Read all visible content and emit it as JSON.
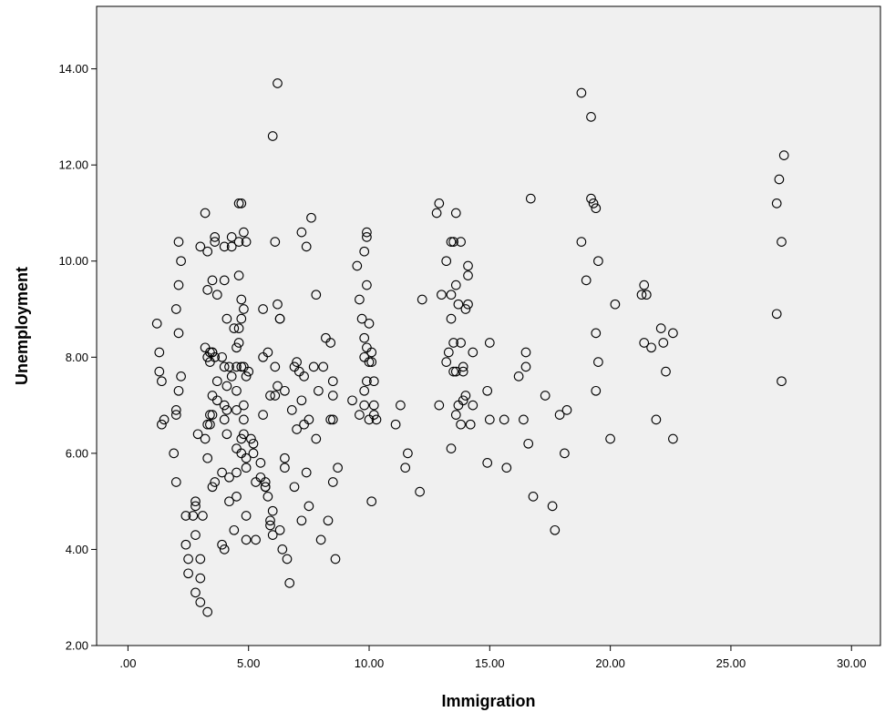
{
  "chart_data": {
    "type": "scatter",
    "title": "",
    "xlabel": "Immigration",
    "ylabel": "Unemployment",
    "xlim": [
      -1.3,
      31.2
    ],
    "ylim": [
      2.0,
      15.3
    ],
    "x_ticks": [
      ".00",
      "5.00",
      "10.00",
      "15.00",
      "20.00",
      "25.00",
      "30.00"
    ],
    "y_ticks": [
      "2.00",
      "4.00",
      "6.00",
      "8.00",
      "10.00",
      "12.00",
      "14.00"
    ],
    "grid": false,
    "marker": "open-circle",
    "colors": {
      "plot_background": "#f0f0f0",
      "marker_stroke": "#000000",
      "axis": "#000000"
    },
    "points": [
      [
        1.2,
        8.7
      ],
      [
        1.3,
        8.1
      ],
      [
        1.3,
        7.7
      ],
      [
        1.4,
        7.5
      ],
      [
        1.4,
        6.6
      ],
      [
        1.5,
        6.7
      ],
      [
        1.9,
        6.0
      ],
      [
        2.0,
        5.4
      ],
      [
        2.0,
        6.8
      ],
      [
        2.0,
        6.9
      ],
      [
        2.0,
        9.0
      ],
      [
        2.1,
        9.5
      ],
      [
        2.1,
        8.5
      ],
      [
        2.1,
        10.4
      ],
      [
        2.2,
        10.0
      ],
      [
        2.2,
        7.6
      ],
      [
        2.1,
        7.3
      ],
      [
        2.4,
        4.7
      ],
      [
        2.4,
        4.1
      ],
      [
        2.5,
        3.8
      ],
      [
        2.5,
        3.5
      ],
      [
        2.7,
        4.7
      ],
      [
        2.8,
        4.9
      ],
      [
        2.8,
        5.0
      ],
      [
        2.8,
        4.3
      ],
      [
        2.8,
        3.1
      ],
      [
        3.0,
        3.8
      ],
      [
        3.0,
        3.4
      ],
      [
        3.0,
        2.9
      ],
      [
        3.0,
        10.3
      ],
      [
        2.9,
        6.4
      ],
      [
        3.1,
        4.7
      ],
      [
        3.2,
        6.3
      ],
      [
        3.2,
        11.0
      ],
      [
        3.3,
        10.2
      ],
      [
        3.3,
        9.4
      ],
      [
        3.2,
        8.2
      ],
      [
        3.3,
        8.0
      ],
      [
        3.4,
        7.9
      ],
      [
        3.4,
        8.1
      ],
      [
        3.5,
        8.1
      ],
      [
        3.5,
        8.1
      ],
      [
        3.6,
        8.0
      ],
      [
        3.4,
        6.8
      ],
      [
        3.4,
        6.6
      ],
      [
        3.3,
        6.6
      ],
      [
        3.5,
        6.8
      ],
      [
        3.3,
        5.9
      ],
      [
        3.3,
        2.7
      ],
      [
        3.5,
        7.2
      ],
      [
        3.5,
        9.6
      ],
      [
        3.6,
        10.4
      ],
      [
        3.6,
        10.5
      ],
      [
        3.7,
        9.3
      ],
      [
        3.7,
        7.5
      ],
      [
        3.7,
        7.1
      ],
      [
        3.5,
        5.3
      ],
      [
        3.6,
        5.4
      ],
      [
        3.9,
        5.6
      ],
      [
        3.9,
        4.1
      ],
      [
        4.0,
        4.0
      ],
      [
        3.9,
        8.0
      ],
      [
        4.0,
        7.8
      ],
      [
        4.0,
        7.0
      ],
      [
        4.0,
        6.7
      ],
      [
        4.1,
        6.9
      ],
      [
        4.1,
        6.4
      ],
      [
        4.0,
        9.6
      ],
      [
        4.0,
        10.3
      ],
      [
        4.1,
        8.8
      ],
      [
        4.1,
        7.4
      ],
      [
        4.2,
        7.8
      ],
      [
        4.3,
        7.6
      ],
      [
        4.2,
        5.5
      ],
      [
        4.2,
        5.0
      ],
      [
        4.3,
        10.3
      ],
      [
        4.3,
        10.5
      ],
      [
        4.4,
        8.6
      ],
      [
        4.4,
        4.4
      ],
      [
        4.5,
        5.6
      ],
      [
        4.5,
        5.1
      ],
      [
        4.5,
        6.9
      ],
      [
        4.5,
        6.1
      ],
      [
        4.5,
        7.3
      ],
      [
        4.5,
        7.8
      ],
      [
        4.5,
        8.2
      ],
      [
        4.6,
        11.2
      ],
      [
        4.6,
        10.4
      ],
      [
        4.6,
        9.7
      ],
      [
        4.6,
        8.6
      ],
      [
        4.6,
        8.3
      ],
      [
        4.7,
        11.2
      ],
      [
        4.7,
        9.2
      ],
      [
        4.7,
        8.8
      ],
      [
        4.7,
        7.8
      ],
      [
        4.7,
        6.0
      ],
      [
        4.7,
        6.3
      ],
      [
        4.8,
        10.6
      ],
      [
        4.8,
        9.0
      ],
      [
        4.8,
        7.8
      ],
      [
        4.8,
        7.0
      ],
      [
        4.8,
        6.7
      ],
      [
        4.8,
        6.4
      ],
      [
        4.9,
        7.6
      ],
      [
        4.9,
        5.9
      ],
      [
        4.9,
        4.7
      ],
      [
        4.9,
        5.7
      ],
      [
        4.9,
        4.2
      ],
      [
        4.9,
        10.4
      ],
      [
        5.0,
        7.7
      ],
      [
        5.1,
        6.3
      ],
      [
        5.2,
        6.0
      ],
      [
        5.2,
        6.2
      ],
      [
        5.3,
        4.2
      ],
      [
        5.3,
        5.4
      ],
      [
        5.5,
        5.5
      ],
      [
        5.5,
        5.8
      ],
      [
        5.6,
        9.0
      ],
      [
        5.6,
        8.0
      ],
      [
        5.6,
        6.8
      ],
      [
        5.7,
        5.4
      ],
      [
        5.7,
        5.3
      ],
      [
        5.7,
        5.3
      ],
      [
        5.8,
        5.1
      ],
      [
        5.8,
        8.1
      ],
      [
        5.9,
        7.2
      ],
      [
        5.9,
        4.6
      ],
      [
        5.9,
        4.5
      ],
      [
        6.0,
        12.6
      ],
      [
        6.0,
        4.8
      ],
      [
        6.0,
        4.3
      ],
      [
        6.1,
        7.8
      ],
      [
        6.1,
        7.2
      ],
      [
        6.2,
        9.1
      ],
      [
        6.1,
        10.4
      ],
      [
        6.2,
        13.7
      ],
      [
        6.2,
        7.4
      ],
      [
        6.3,
        8.8
      ],
      [
        6.3,
        8.8
      ],
      [
        6.3,
        4.4
      ],
      [
        6.4,
        4.0
      ],
      [
        6.5,
        5.7
      ],
      [
        6.5,
        5.9
      ],
      [
        6.5,
        7.3
      ],
      [
        6.6,
        3.8
      ],
      [
        6.7,
        3.3
      ],
      [
        6.8,
        6.9
      ],
      [
        6.9,
        7.8
      ],
      [
        6.9,
        5.3
      ],
      [
        7.0,
        7.9
      ],
      [
        7.0,
        6.5
      ],
      [
        7.1,
        7.7
      ],
      [
        7.2,
        10.6
      ],
      [
        7.2,
        7.1
      ],
      [
        7.2,
        4.6
      ],
      [
        7.3,
        7.6
      ],
      [
        7.3,
        6.6
      ],
      [
        7.4,
        10.3
      ],
      [
        7.4,
        5.6
      ],
      [
        7.5,
        4.9
      ],
      [
        7.5,
        6.7
      ],
      [
        7.6,
        10.9
      ],
      [
        7.7,
        7.8
      ],
      [
        7.8,
        9.3
      ],
      [
        7.8,
        6.3
      ],
      [
        7.9,
        7.3
      ],
      [
        8.0,
        4.2
      ],
      [
        8.1,
        7.8
      ],
      [
        8.2,
        8.4
      ],
      [
        8.3,
        4.6
      ],
      [
        8.4,
        8.3
      ],
      [
        8.4,
        6.7
      ],
      [
        8.5,
        6.7
      ],
      [
        8.5,
        7.2
      ],
      [
        8.5,
        7.5
      ],
      [
        8.5,
        5.4
      ],
      [
        8.6,
        3.8
      ],
      [
        8.7,
        5.7
      ],
      [
        9.3,
        7.1
      ],
      [
        9.5,
        9.9
      ],
      [
        9.6,
        9.2
      ],
      [
        9.6,
        6.8
      ],
      [
        9.7,
        8.8
      ],
      [
        9.8,
        10.2
      ],
      [
        9.8,
        8.4
      ],
      [
        9.8,
        8.0
      ],
      [
        9.8,
        7.3
      ],
      [
        9.8,
        7.0
      ],
      [
        9.9,
        10.5
      ],
      [
        9.9,
        10.6
      ],
      [
        9.9,
        9.5
      ],
      [
        9.9,
        8.2
      ],
      [
        9.9,
        7.5
      ],
      [
        10.0,
        8.7
      ],
      [
        10.0,
        7.9
      ],
      [
        10.0,
        6.7
      ],
      [
        10.1,
        8.1
      ],
      [
        10.1,
        7.9
      ],
      [
        10.2,
        6.8
      ],
      [
        10.1,
        5.0
      ],
      [
        10.2,
        7.5
      ],
      [
        10.2,
        7.0
      ],
      [
        10.3,
        6.7
      ],
      [
        11.1,
        6.6
      ],
      [
        11.3,
        7.0
      ],
      [
        11.5,
        5.7
      ],
      [
        11.6,
        6.0
      ],
      [
        12.1,
        5.2
      ],
      [
        12.2,
        9.2
      ],
      [
        12.8,
        11.0
      ],
      [
        12.9,
        11.2
      ],
      [
        12.9,
        7.0
      ],
      [
        13.0,
        9.3
      ],
      [
        13.2,
        10.0
      ],
      [
        13.2,
        7.9
      ],
      [
        13.3,
        8.1
      ],
      [
        13.4,
        6.1
      ],
      [
        13.4,
        9.3
      ],
      [
        13.4,
        8.8
      ],
      [
        13.4,
        10.4
      ],
      [
        13.5,
        10.4
      ],
      [
        13.5,
        8.3
      ],
      [
        13.5,
        7.7
      ],
      [
        13.6,
        11.0
      ],
      [
        13.6,
        9.5
      ],
      [
        13.6,
        7.7
      ],
      [
        13.6,
        6.8
      ],
      [
        13.7,
        9.1
      ],
      [
        13.7,
        7.0
      ],
      [
        13.8,
        10.4
      ],
      [
        13.8,
        8.3
      ],
      [
        13.8,
        6.6
      ],
      [
        13.9,
        7.7
      ],
      [
        13.9,
        7.8
      ],
      [
        13.9,
        7.1
      ],
      [
        14.0,
        9.0
      ],
      [
        14.0,
        7.2
      ],
      [
        14.1,
        9.7
      ],
      [
        14.1,
        9.9
      ],
      [
        14.1,
        9.1
      ],
      [
        14.2,
        6.6
      ],
      [
        14.3,
        8.1
      ],
      [
        14.3,
        7.0
      ],
      [
        14.9,
        7.3
      ],
      [
        14.9,
        5.8
      ],
      [
        15.0,
        8.3
      ],
      [
        15.0,
        6.7
      ],
      [
        15.6,
        6.7
      ],
      [
        15.7,
        5.7
      ],
      [
        16.2,
        7.6
      ],
      [
        16.4,
        6.7
      ],
      [
        16.5,
        7.8
      ],
      [
        16.5,
        8.1
      ],
      [
        16.6,
        6.2
      ],
      [
        16.7,
        11.3
      ],
      [
        16.8,
        5.1
      ],
      [
        17.3,
        7.2
      ],
      [
        17.6,
        4.9
      ],
      [
        17.7,
        4.4
      ],
      [
        17.9,
        6.8
      ],
      [
        18.1,
        6.0
      ],
      [
        18.2,
        6.9
      ],
      [
        18.8,
        10.4
      ],
      [
        18.8,
        13.5
      ],
      [
        19.0,
        9.6
      ],
      [
        19.2,
        13.0
      ],
      [
        19.2,
        11.3
      ],
      [
        19.3,
        11.2
      ],
      [
        19.4,
        11.1
      ],
      [
        19.4,
        8.5
      ],
      [
        19.4,
        7.3
      ],
      [
        19.5,
        10.0
      ],
      [
        19.5,
        7.9
      ],
      [
        20.0,
        6.3
      ],
      [
        20.2,
        9.1
      ],
      [
        21.3,
        9.3
      ],
      [
        21.4,
        9.5
      ],
      [
        21.5,
        9.3
      ],
      [
        21.4,
        8.3
      ],
      [
        21.7,
        8.2
      ],
      [
        21.9,
        6.7
      ],
      [
        22.1,
        8.6
      ],
      [
        22.2,
        8.3
      ],
      [
        22.3,
        7.7
      ],
      [
        22.6,
        8.5
      ],
      [
        22.6,
        6.3
      ],
      [
        26.9,
        11.2
      ],
      [
        26.9,
        8.9
      ],
      [
        27.0,
        11.7
      ],
      [
        27.1,
        10.4
      ],
      [
        27.1,
        7.5
      ],
      [
        27.2,
        12.2
      ]
    ]
  }
}
